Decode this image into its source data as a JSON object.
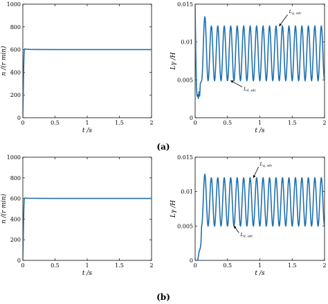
{
  "panel_labels": [
    "(a)",
    "(b)"
  ],
  "colors": {
    "series": "#1f6fb0",
    "axis": "#000000"
  },
  "chart_data": [
    {
      "id": "a-speed",
      "type": "line",
      "xlabel": "t /s",
      "ylabel": "n /(r min)",
      "xlim": [
        0,
        2
      ],
      "ylim": [
        0,
        1000
      ],
      "xticks": [
        0,
        0.5,
        1,
        1.5,
        2
      ],
      "xtick_labels": [
        "0",
        "0.5",
        "1",
        "1.5",
        "2"
      ],
      "yticks": [
        0,
        200,
        400,
        600,
        800,
        1000
      ],
      "ytick_labels": [
        "0",
        "200",
        "400",
        "600",
        "800",
        "1000"
      ],
      "grid": false,
      "series": [
        {
          "x": [
            0,
            0.005,
            0.01,
            0.015,
            0.02,
            0.025,
            0.03,
            0.04,
            0.06,
            0.1,
            0.2,
            0.5,
            1.0,
            1.5,
            2.0
          ],
          "y": [
            0,
            150,
            330,
            490,
            585,
            602,
            606,
            605,
            603,
            602,
            601,
            600,
            600,
            600,
            600
          ]
        }
      ]
    },
    {
      "id": "a-inductance",
      "type": "line",
      "xlabel": "t /s",
      "ylabel": "Lγ /H",
      "xlim": [
        0,
        2
      ],
      "ylim": [
        0,
        0.015
      ],
      "xticks": [
        0,
        0.5,
        1,
        1.5,
        2
      ],
      "xtick_labels": [
        "0",
        "0.5",
        "1",
        "1.5",
        "2"
      ],
      "yticks": [
        0,
        0.005,
        0.01,
        0.015
      ],
      "ytick_labels": [
        "0",
        "0.005",
        "0.01",
        "0.015"
      ],
      "grid": false,
      "oscillation": {
        "start": 0.1,
        "end": 2.0,
        "frequency": 10,
        "max": 0.0121,
        "min": 0.0049,
        "first_peak": 0.0133
      },
      "startup": {
        "x": [
          0,
          0.01,
          0.02,
          0.03,
          0.04,
          0.05,
          0.06,
          0.07,
          0.08
        ],
        "y": [
          0.015,
          0.0085,
          0.004,
          0.0028,
          0.0031,
          0.0025,
          0.0035,
          0.0028,
          0.0045
        ]
      },
      "annotations": [
        {
          "text": "Lq_sdc",
          "target": [
            1.3,
            0.0121
          ],
          "label_at": [
            1.45,
            0.0138
          ]
        },
        {
          "text": "Ld_sdc",
          "target": [
            0.55,
            0.0049
          ],
          "label_at": [
            0.75,
            0.0036
          ]
        }
      ]
    },
    {
      "id": "b-speed",
      "type": "line",
      "xlabel": "t /s",
      "ylabel": "n /(r min)",
      "xlim": [
        0,
        2
      ],
      "ylim": [
        0,
        1000
      ],
      "xticks": [
        0,
        0.5,
        1,
        1.5,
        2
      ],
      "xtick_labels": [
        "0",
        "0.5",
        "1",
        "1.5",
        "2"
      ],
      "yticks": [
        0,
        200,
        400,
        600,
        800,
        1000
      ],
      "ytick_labels": [
        "0",
        "200",
        "400",
        "600",
        "800",
        "1000"
      ],
      "grid": false,
      "series": [
        {
          "x": [
            0,
            0.005,
            0.01,
            0.015,
            0.02,
            0.025,
            0.03,
            0.04,
            0.06,
            0.1,
            0.2,
            0.5,
            1.0,
            1.5,
            2.0
          ],
          "y": [
            0,
            140,
            320,
            480,
            580,
            600,
            604,
            604,
            603,
            602,
            601,
            600,
            600,
            600,
            600
          ]
        }
      ]
    },
    {
      "id": "b-inductance",
      "type": "line",
      "xlabel": "t /s",
      "ylabel": "Lγ /H",
      "xlim": [
        0,
        2
      ],
      "ylim": [
        0,
        0.015
      ],
      "xticks": [
        0,
        0.5,
        1,
        1.5,
        2
      ],
      "xtick_labels": [
        "0",
        "0.5",
        "1",
        "1.5",
        "2"
      ],
      "yticks": [
        0,
        0.005,
        0.01,
        0.015
      ],
      "ytick_labels": [
        "0",
        "0.005",
        "0.01",
        "0.015"
      ],
      "grid": false,
      "oscillation": {
        "start": 0.1,
        "end": 2.0,
        "frequency": 10,
        "max": 0.012,
        "min": 0.005,
        "first_peak": 0.0125
      },
      "startup": {
        "x": [
          0,
          0.04,
          0.06,
          0.08,
          0.09,
          0.1
        ],
        "y": [
          0,
          0,
          0.0012,
          0.0018,
          0.0025,
          0.005
        ]
      },
      "annotations": [
        {
          "text": "Lq_sdc",
          "target": [
            0.9,
            0.012
          ],
          "label_at": [
            1.0,
            0.0138
          ]
        },
        {
          "text": "Ld_sdc",
          "target": [
            0.6,
            0.005
          ],
          "label_at": [
            0.7,
            0.0035
          ]
        }
      ]
    }
  ]
}
